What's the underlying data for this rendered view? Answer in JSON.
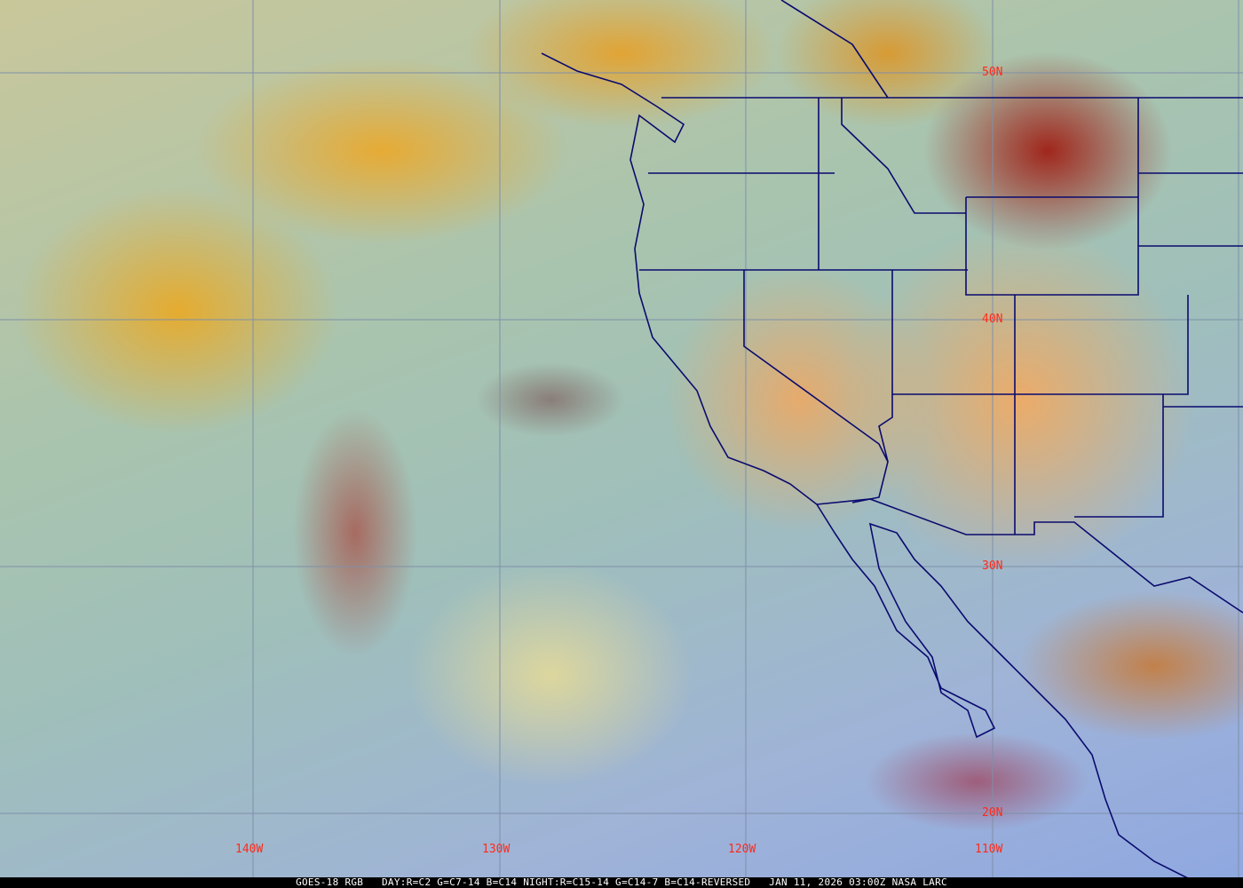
{
  "caption": {
    "satellite": "GOES-18 RGB",
    "recipe": "DAY:R=C2 G=C7-14 B=C14 NIGHT:R=C15-14 G=C14-7 B=C14-REVERSED",
    "timestamp": "JAN 11, 2026 03:00Z",
    "source": "NASA LARC"
  },
  "grid_labels": {
    "lat": [
      "50N",
      "40N",
      "30N",
      "20N"
    ],
    "lon": [
      "140W",
      "130W",
      "120W",
      "110W"
    ]
  },
  "colors": {
    "grid": "#7f8fa8",
    "borders": "#0a0a6e",
    "labels": "#ff2a1a"
  }
}
